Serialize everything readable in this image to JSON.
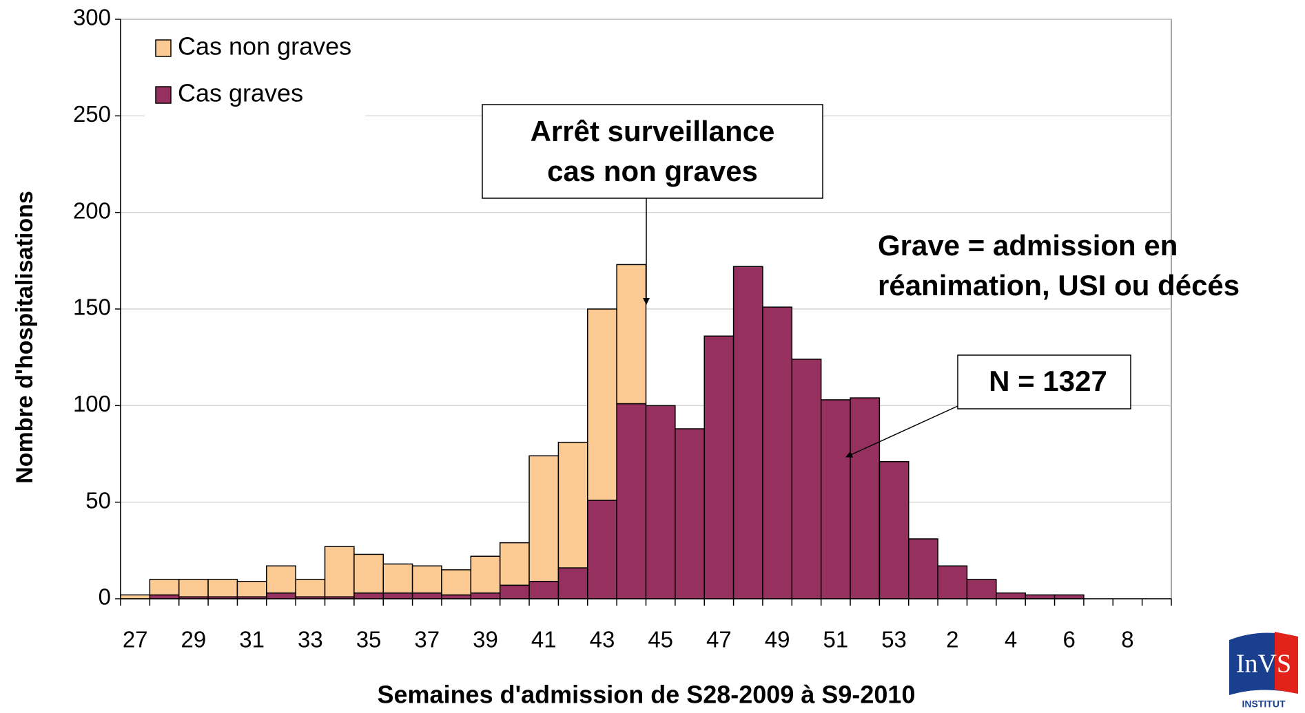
{
  "chart_data": {
    "type": "stacked_bar",
    "x_label": "Semaines d'admission de S28-2009 à S9-2010",
    "y_label": "Nombre d'hospitalisations",
    "categories": [
      "27",
      null,
      "29",
      null,
      "31",
      null,
      "33",
      null,
      "35",
      null,
      "37",
      null,
      "39",
      null,
      "41",
      null,
      "43",
      null,
      "45",
      null,
      "47",
      null,
      "49",
      null,
      "51",
      null,
      "53",
      null,
      "2",
      null,
      "4",
      null,
      "6",
      null,
      "8",
      null
    ],
    "series": [
      {
        "name": "Cas non graves",
        "color": "#fccb94",
        "values": [
          2,
          8,
          9,
          9,
          8,
          14,
          9,
          26,
          20,
          15,
          14,
          13,
          19,
          22,
          65,
          65,
          99,
          72,
          null,
          null,
          null,
          null,
          null,
          null,
          null,
          null,
          null,
          null,
          null,
          null,
          null,
          null,
          null,
          null,
          null,
          null
        ]
      },
      {
        "name": "Cas graves",
        "color": "#96305f",
        "values": [
          0,
          2,
          1,
          1,
          1,
          3,
          1,
          1,
          3,
          3,
          3,
          2,
          3,
          7,
          9,
          16,
          51,
          101,
          100,
          88,
          136,
          172,
          151,
          124,
          103,
          104,
          71,
          31,
          17,
          10,
          3,
          2,
          2,
          0,
          0,
          0
        ]
      }
    ],
    "ylim": [
      0,
      300
    ],
    "yticks": [
      0,
      50,
      100,
      150,
      200,
      250,
      300
    ],
    "grid": true,
    "legend": "top-left",
    "annotations": [
      {
        "lines": [
          "Arrêt surveillance",
          "cas non graves"
        ]
      },
      {
        "lines": [
          "Grave = admission en",
          "réanimation, USI ou décés"
        ]
      },
      {
        "lines": [
          "N = 1327"
        ]
      }
    ]
  },
  "logo": {
    "text": "InVS",
    "subtitle": "INSTITUT"
  }
}
